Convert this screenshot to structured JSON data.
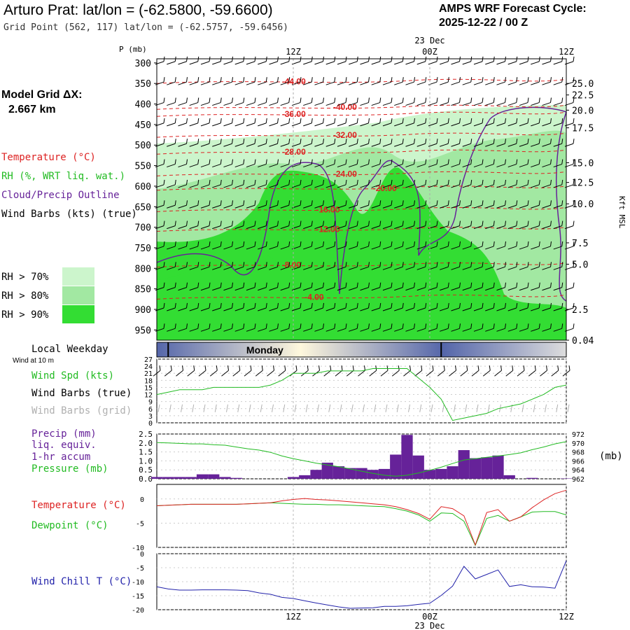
{
  "header": {
    "station_line": "Arturo Prat:  lat/lon = (-62.5800, -59.6600)",
    "grid_point_line": "Grid Point (562, 117) lat/lon = (-62.5757, -59.6456)",
    "forecast_title": "AMPS WRF Forecast Cycle:",
    "forecast_cycle": "2025-12-22 / 00  Z"
  },
  "model_grid": {
    "label": "Model Grid ΔX:",
    "value": "2.667 km"
  },
  "legend": {
    "temperature": "Temperature (°C)",
    "rh": "RH (%, WRT liq. wat.)",
    "cloud": "Cloud/Precip Outline",
    "barbs": "Wind Barbs (kts) (true)",
    "rh70": "RH > 70%",
    "rh80": "RH > 80%",
    "rh90": "RH > 90%"
  },
  "colors": {
    "rh70": "#ccf5cc",
    "rh80": "#a2e8a2",
    "rh90": "#33dd33",
    "temperature": "#dd2222",
    "cloud_outline": "#662299",
    "wind_speed": "#22bb22",
    "precip_bar": "#662299",
    "pressure": "#22bb22",
    "dewpoint": "#22bb22",
    "wind_chill": "#2222aa",
    "grid_barbs": "#b0b0b0"
  },
  "time_axis": {
    "hours": [
      0,
      12,
      24,
      36
    ],
    "labels": [
      "12Z",
      "00Z",
      "12Z"
    ],
    "label_hours": [
      12,
      24,
      36
    ],
    "date_label": "23 Dec",
    "date_hour": 24
  },
  "local_weekday": {
    "label": "Local Weekday",
    "sublabel": "Wind at 10 m",
    "day": "Monday",
    "marker_hours": [
      1,
      25
    ]
  },
  "cross_section": {
    "pressure_axis_label": "P (mb)",
    "pressure_ticks": [
      300,
      350,
      400,
      450,
      500,
      550,
      600,
      650,
      700,
      750,
      800,
      850,
      900,
      950
    ],
    "p_range": [
      290,
      975
    ],
    "kft_label": "Kft MSL",
    "kft_ticks": [
      {
        "label": "25.0",
        "p": 350
      },
      {
        "label": "22.5",
        "p": 378
      },
      {
        "label": "20.0",
        "p": 415
      },
      {
        "label": "17.5",
        "p": 458
      },
      {
        "label": "15.0",
        "p": 543
      },
      {
        "label": "12.5",
        "p": 591
      },
      {
        "label": "10.0",
        "p": 643
      },
      {
        "label": "7.5",
        "p": 738
      },
      {
        "label": "5.0",
        "p": 790
      },
      {
        "label": "2.5",
        "p": 900
      },
      {
        "label": "0.04",
        "p": 975
      }
    ],
    "isotherms": [
      {
        "label": "-44.00",
        "hour": 11,
        "p": 345
      },
      {
        "label": "-40.00",
        "hour": 15.5,
        "p": 408
      },
      {
        "label": "-36.00",
        "hour": 11,
        "p": 425
      },
      {
        "label": "-32.00",
        "hour": 15.5,
        "p": 476
      },
      {
        "label": "-28.00",
        "hour": 11,
        "p": 517
      },
      {
        "label": "-24.00",
        "hour": 15.5,
        "p": 570
      },
      {
        "label": "-20.00",
        "hour": 19,
        "p": 605
      },
      {
        "label": "-16.00",
        "hour": 14,
        "p": 657
      },
      {
        "label": "-12.00",
        "hour": 14,
        "p": 705
      },
      {
        "label": "-8.00",
        "hour": 11,
        "p": 792
      },
      {
        "label": "-4.00",
        "hour": 13,
        "p": 870
      }
    ]
  },
  "wind_panel": {
    "legend_speed": "Wind Spd (kts)",
    "legend_true": "Wind Barbs (true)",
    "legend_grid": "Wind Barbs (grid)",
    "ylim": [
      0,
      27
    ],
    "yticks": [
      0,
      3,
      6,
      9,
      12,
      15,
      18,
      21,
      24,
      27
    ]
  },
  "precip_panel": {
    "legend_precip": "Precip (mm)",
    "legend_liq": "liq. equiv.",
    "legend_accum": "1-hr accum",
    "legend_pressure": "Pressure (mb)",
    "unit_right": "(mb)",
    "ylim": [
      0,
      2.5
    ],
    "yticks_left": [
      "0.0",
      "0.5",
      "1.0",
      "1.5",
      "2.0",
      "2.5"
    ],
    "y2lim": [
      962,
      972
    ],
    "yticks_right": [
      "962",
      "964",
      "966",
      "968",
      "970",
      "972"
    ]
  },
  "temp_panel": {
    "legend_temp": "Temperature (°C)",
    "legend_dew": "Dewpoint (°C)",
    "ylim": [
      -10,
      3
    ],
    "yticks": [
      "0",
      "-5",
      "-10"
    ]
  },
  "chill_panel": {
    "legend": "Wind Chill T (°C)",
    "ylim": [
      -20,
      0
    ],
    "yticks": [
      "0",
      "-5",
      "-10",
      "-15",
      "-20"
    ]
  },
  "chart_data": {
    "type": "meteogram",
    "hours": [
      0,
      1,
      2,
      3,
      4,
      5,
      6,
      7,
      8,
      9,
      10,
      11,
      12,
      13,
      14,
      15,
      16,
      17,
      18,
      19,
      20,
      21,
      22,
      23,
      24,
      25,
      26,
      27,
      28,
      29,
      30,
      31,
      32,
      33,
      34,
      35,
      36
    ],
    "wind_speed_kts": [
      12,
      13,
      14,
      14,
      14,
      15,
      15,
      15,
      15,
      15,
      16,
      18,
      21,
      21,
      21,
      22,
      22,
      22,
      22,
      23,
      23,
      23,
      23,
      19,
      15,
      10,
      1,
      2,
      3,
      4,
      6,
      7,
      8,
      10,
      12,
      15,
      16
    ],
    "precip_mm": [
      0.1,
      0.1,
      0.1,
      0.1,
      0.25,
      0.25,
      0.1,
      0.05,
      0,
      0,
      0,
      0,
      0.1,
      0.2,
      0.5,
      0.9,
      0.7,
      0.6,
      0.6,
      0.5,
      0.55,
      1.35,
      2.45,
      1.3,
      0.5,
      0.55,
      0.7,
      1.6,
      1.15,
      1.2,
      1.3,
      0.2,
      0,
      0.05,
      0,
      0,
      0.02
    ],
    "pressure_mb": [
      970.1,
      970.0,
      969.9,
      969.8,
      969.8,
      969.6,
      969.5,
      969.1,
      968.7,
      968.4,
      967.9,
      967.1,
      966.5,
      966.0,
      965.5,
      965.1,
      964.7,
      964.2,
      963.7,
      963.2,
      962.8,
      962.6,
      962.8,
      963.3,
      963.9,
      964.6,
      965.4,
      966.2,
      966.5,
      966.8,
      967.1,
      967.4,
      967.8,
      968.5,
      969.1,
      969.8,
      970.3
    ],
    "temperature_c": [
      -1.4,
      -1.3,
      -1.2,
      -1.1,
      -1.1,
      -1.1,
      -1.1,
      -1.1,
      -1.0,
      -0.9,
      -0.8,
      -0.4,
      -0.1,
      0.1,
      -0.1,
      -0.2,
      -0.4,
      -0.6,
      -0.8,
      -1.0,
      -1.2,
      -1.6,
      -2.2,
      -3.0,
      -4.2,
      -1.6,
      -2.0,
      -3.5,
      -9.5,
      -2.8,
      -2.2,
      -4.6,
      -3.7,
      -1.8,
      -0.2,
      1.1,
      1.8
    ],
    "dewpoint_c": [
      -1.4,
      -1.3,
      -1.2,
      -1.1,
      -1.1,
      -1.1,
      -1.1,
      -1.1,
      -1.0,
      -0.9,
      -0.8,
      -0.9,
      -1.0,
      -1.1,
      -1.1,
      -1.2,
      -1.2,
      -1.3,
      -1.4,
      -1.5,
      -1.6,
      -2.0,
      -2.5,
      -3.3,
      -4.6,
      -2.9,
      -3.0,
      -4.6,
      -9.6,
      -4.0,
      -3.4,
      -4.6,
      -3.7,
      -2.7,
      -2.6,
      -2.6,
      -3.3
    ],
    "wind_chill_c": [
      -11.8,
      -12.6,
      -13.0,
      -13.0,
      -12.9,
      -12.9,
      -12.9,
      -13.0,
      -13.2,
      -14.0,
      -14.5,
      -15.6,
      -16.0,
      -16.8,
      -17.6,
      -18.3,
      -19.0,
      -19.5,
      -19.4,
      -19.3,
      -18.8,
      -18.8,
      -18.6,
      -18.1,
      -17.7,
      -14.9,
      -11.6,
      -4.5,
      -9.0,
      -7.4,
      -5.8,
      -11.7,
      -11.1,
      -11.8,
      -11.9,
      -12.3,
      -2.5
    ]
  }
}
